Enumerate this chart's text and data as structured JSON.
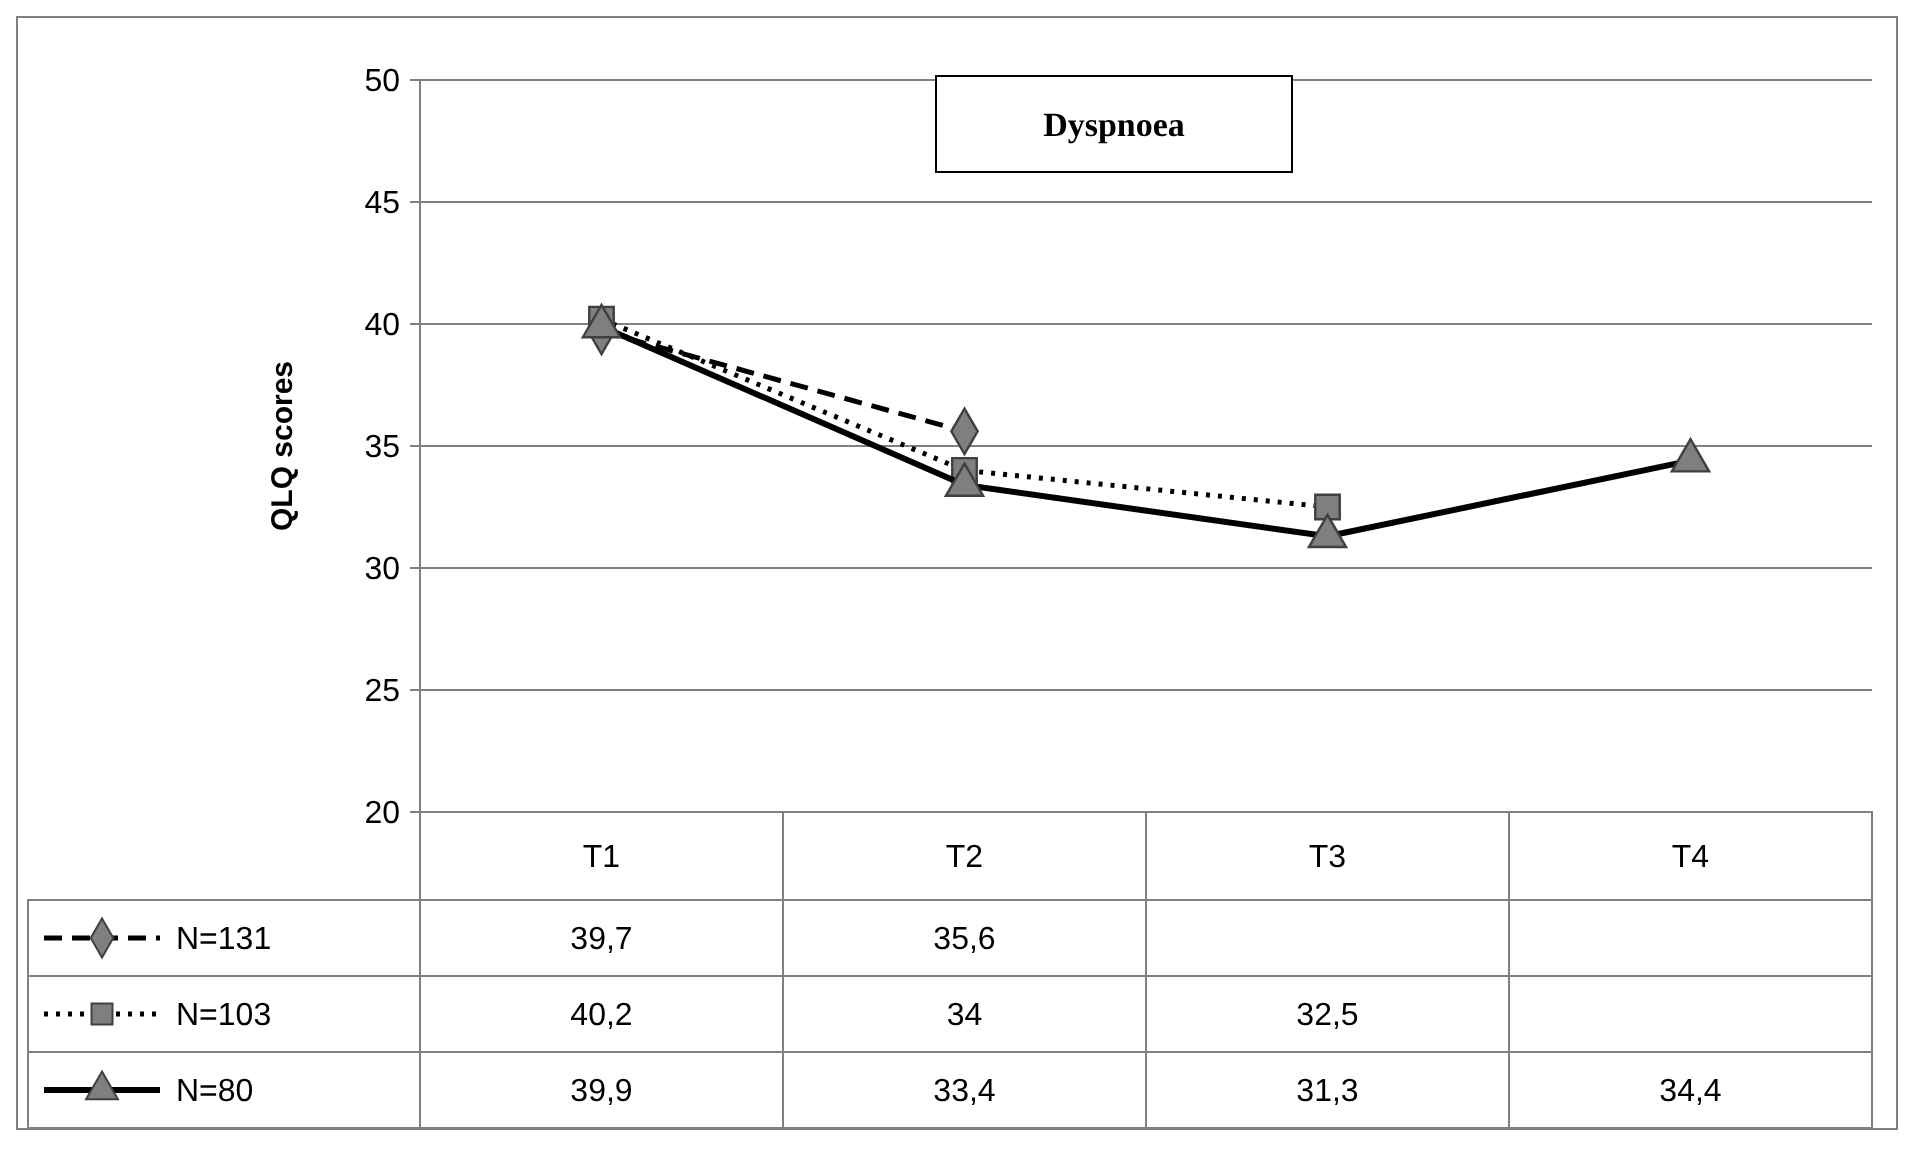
{
  "chart_data": {
    "type": "line",
    "title": "Dyspnoea",
    "ylabel": "QLQ scores",
    "categories": [
      "T1",
      "T2",
      "T3",
      "T4"
    ],
    "ylim": [
      20,
      50
    ],
    "yticks": [
      20,
      25,
      30,
      35,
      40,
      45,
      50
    ],
    "grid": "y",
    "legend": "bottom",
    "series": [
      {
        "name": "N=131",
        "color": "#000000",
        "marker": "diamond",
        "line_style": "dashed",
        "values": [
          39.7,
          35.6,
          null,
          null
        ],
        "value_labels": [
          "39,7",
          "35,6",
          null,
          null
        ]
      },
      {
        "name": "N=103",
        "color": "#000000",
        "marker": "square",
        "line_style": "dotted",
        "values": [
          40.2,
          34,
          32.5,
          null
        ],
        "value_labels": [
          "40,2",
          "34",
          "32,5",
          null
        ]
      },
      {
        "name": "N=80",
        "color": "#000000",
        "marker": "triangle",
        "line_style": "solid",
        "values": [
          39.9,
          33.4,
          31.3,
          34.4
        ],
        "value_labels": [
          "39,9",
          "33,4",
          "31,3",
          "34,4"
        ]
      }
    ]
  }
}
